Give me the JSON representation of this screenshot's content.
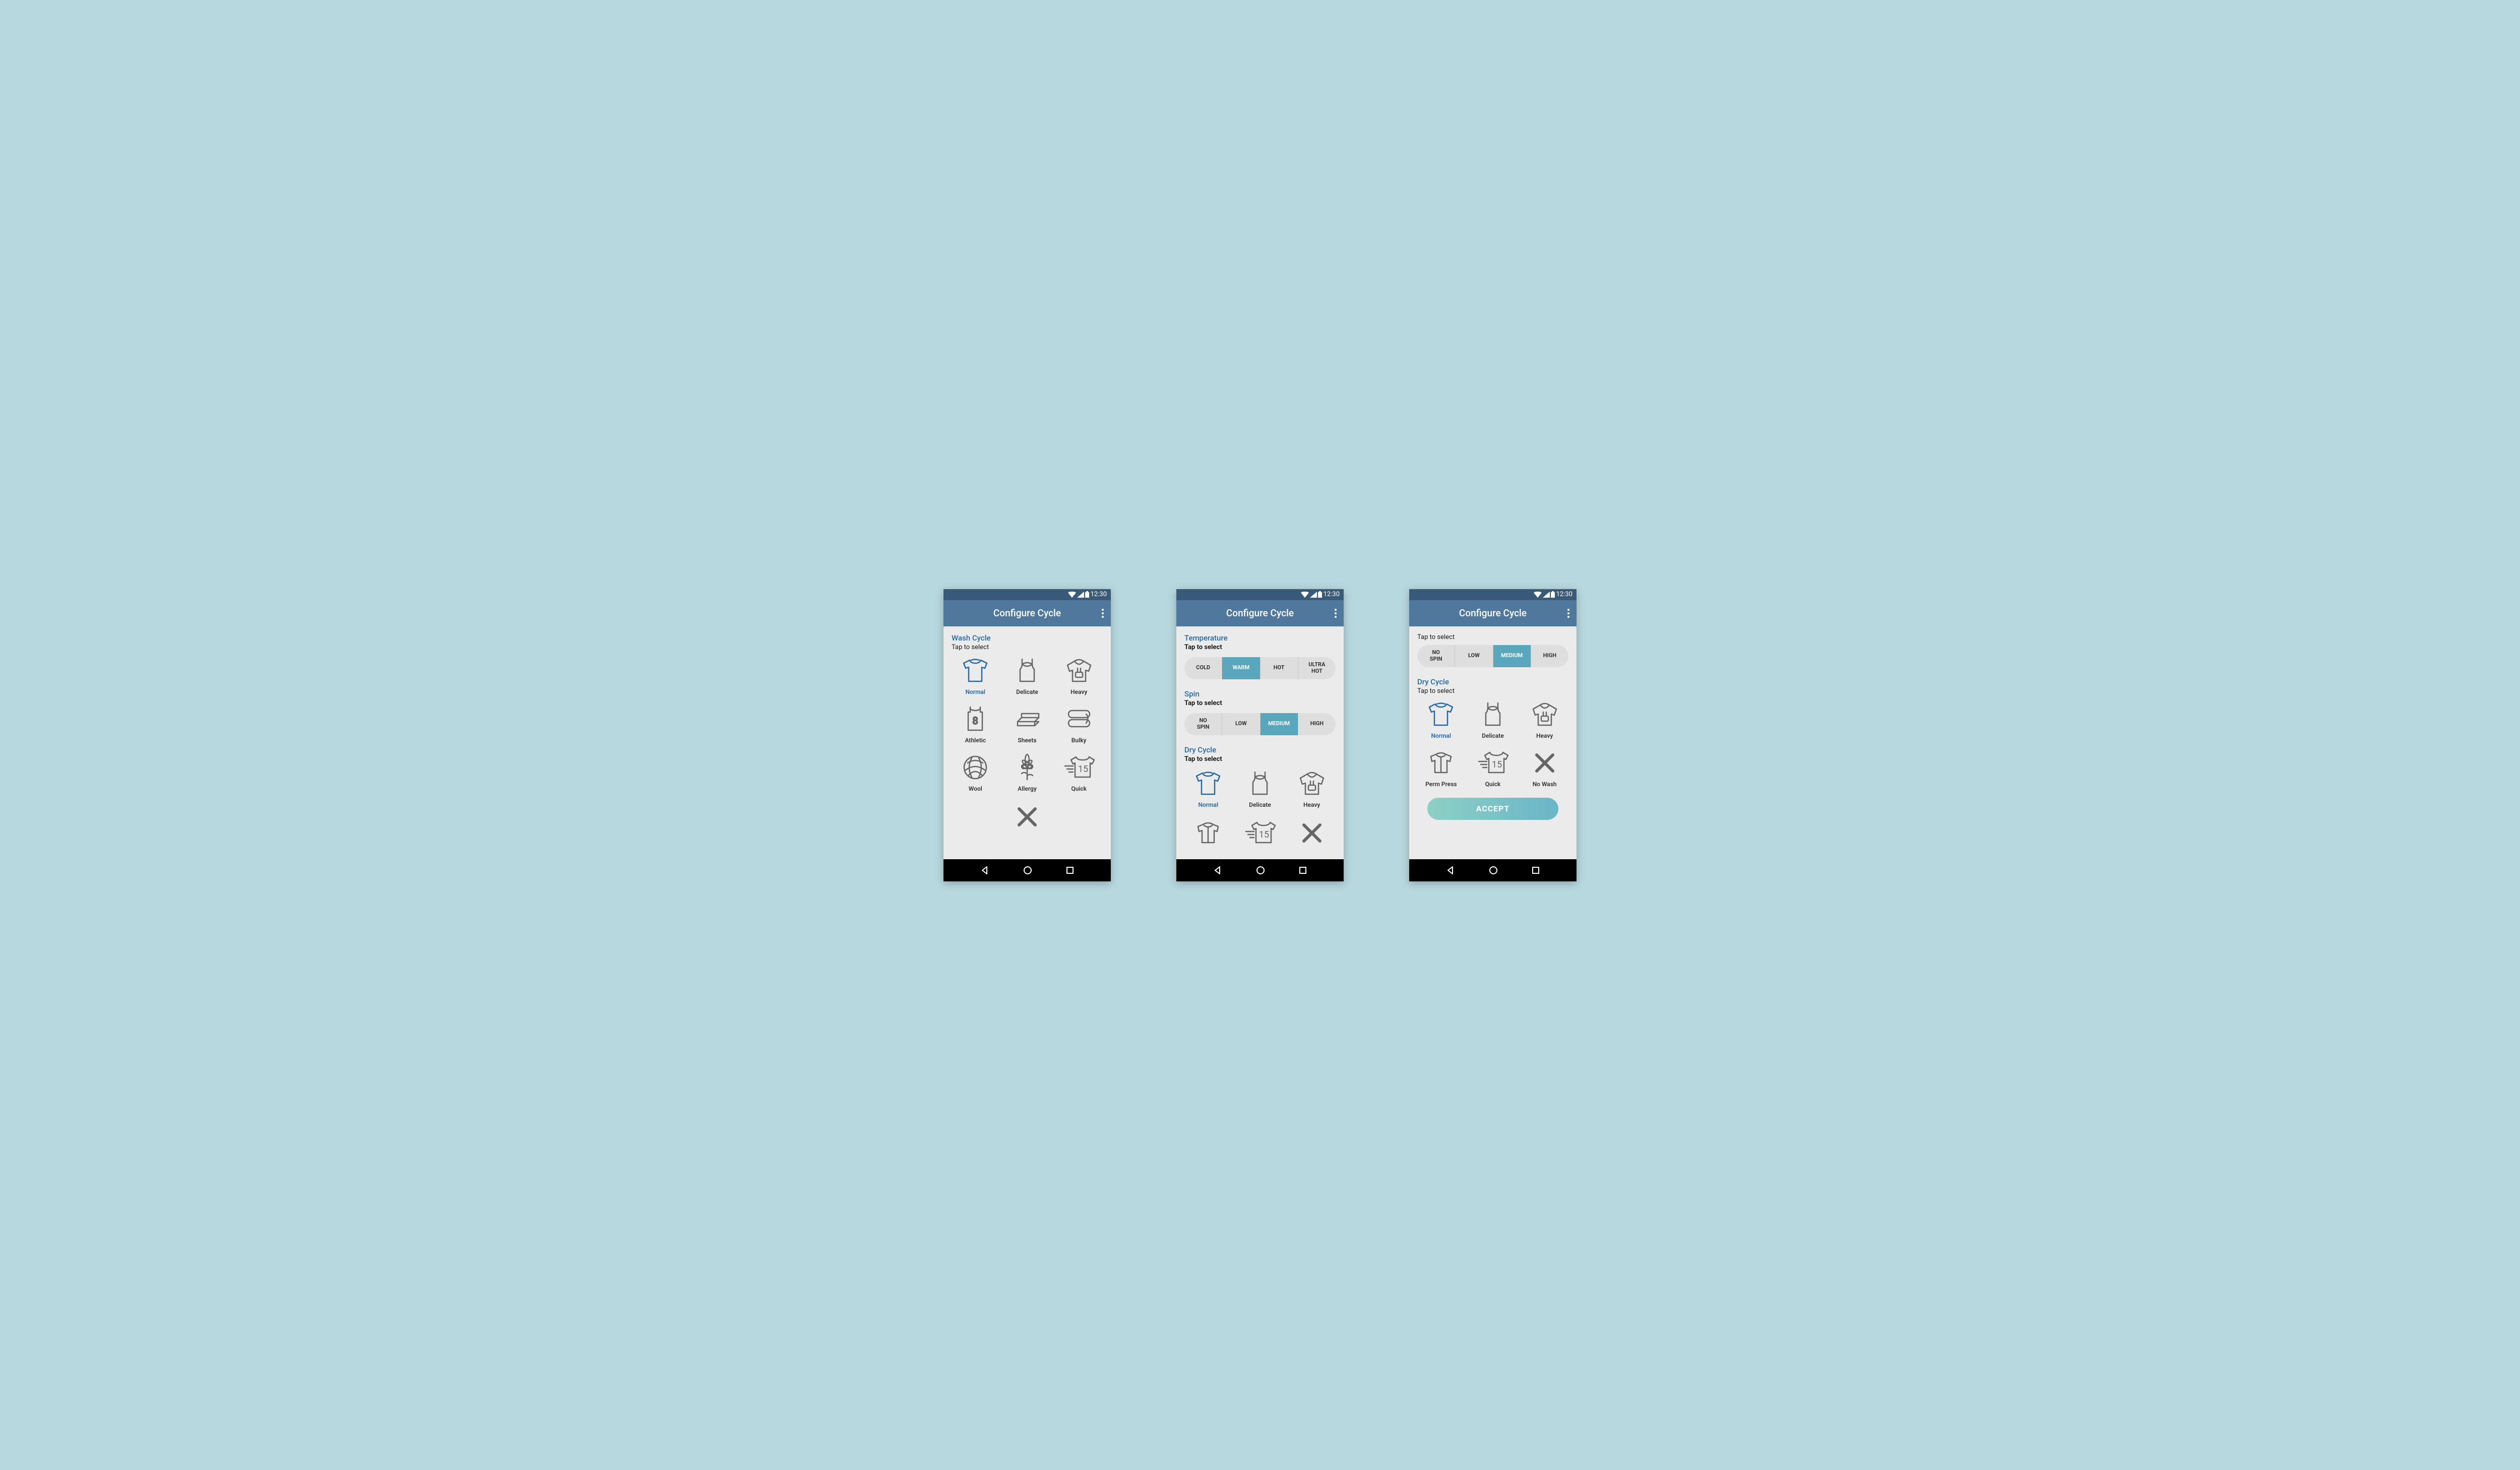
{
  "colors": {
    "page_bg": "#b8d8df",
    "phone_bg": "#ebebeb",
    "status_bar_bg": "#3a5a7a",
    "app_bar_bg": "#50789c",
    "accent": "#2569a8",
    "segment_bg": "#dedede",
    "segment_active": "#5aa6bd",
    "icon_stroke": "#666666",
    "icon_selected": "#2569a8",
    "nav_bg": "#000000",
    "accept_grad_from": "#8dd0c5",
    "accept_grad_to": "#6ab5c7"
  },
  "status": {
    "time": "12:30"
  },
  "header": {
    "title": "Configure Cycle"
  },
  "screen1": {
    "wash_cycle": {
      "title": "Wash Cycle",
      "subtitle": "Tap to select",
      "items": [
        {
          "label": "Normal",
          "icon": "tshirt",
          "selected": true
        },
        {
          "label": "Delicate",
          "icon": "camisole",
          "selected": false
        },
        {
          "label": "Heavy",
          "icon": "hoodie",
          "selected": false
        },
        {
          "label": "Athletic",
          "icon": "jersey",
          "selected": false
        },
        {
          "label": "Sheets",
          "icon": "sheets",
          "selected": false
        },
        {
          "label": "Bulky",
          "icon": "bulky",
          "selected": false
        },
        {
          "label": "Wool",
          "icon": "wool",
          "selected": false
        },
        {
          "label": "Allergy",
          "icon": "allergy",
          "selected": false
        },
        {
          "label": "Quick",
          "icon": "quick",
          "selected": false
        }
      ],
      "extra": {
        "icon": "nowash"
      }
    }
  },
  "screen2": {
    "temperature": {
      "title": "Temperature",
      "subtitle": "Tap to select",
      "options": [
        "COLD",
        "WARM",
        "HOT",
        "ULTRA HOT"
      ],
      "selected_index": 1
    },
    "spin": {
      "title": "Spin",
      "subtitle": "Tap to select",
      "options": [
        "NO SPIN",
        "LOW",
        "MEDIUM",
        "HIGH"
      ],
      "selected_index": 2
    },
    "dry_cycle": {
      "title": "Dry Cycle",
      "subtitle": "Tap to select",
      "items": [
        {
          "label": "Normal",
          "icon": "tshirt",
          "selected": true
        },
        {
          "label": "Delicate",
          "icon": "camisole",
          "selected": false
        },
        {
          "label": "Heavy",
          "icon": "hoodie",
          "selected": false
        }
      ],
      "peek": [
        {
          "icon": "permpress"
        },
        {
          "icon": "quick"
        },
        {
          "icon": "nowash"
        }
      ]
    }
  },
  "screen3": {
    "top_sub": "Tap to select",
    "spin": {
      "options": [
        "NO SPIN",
        "LOW",
        "MEDIUM",
        "HIGH"
      ],
      "selected_index": 2
    },
    "dry_cycle": {
      "title": "Dry Cycle",
      "subtitle": "Tap to select",
      "items": [
        {
          "label": "Normal",
          "icon": "tshirt",
          "selected": true
        },
        {
          "label": "Delicate",
          "icon": "camisole",
          "selected": false
        },
        {
          "label": "Heavy",
          "icon": "hoodie",
          "selected": false
        },
        {
          "label": "Perm Press",
          "icon": "permpress",
          "selected": false
        },
        {
          "label": "Quick",
          "icon": "quick",
          "selected": false
        },
        {
          "label": "No Wash",
          "icon": "nowash",
          "selected": false
        }
      ]
    },
    "accept_label": "ACCEPT"
  }
}
